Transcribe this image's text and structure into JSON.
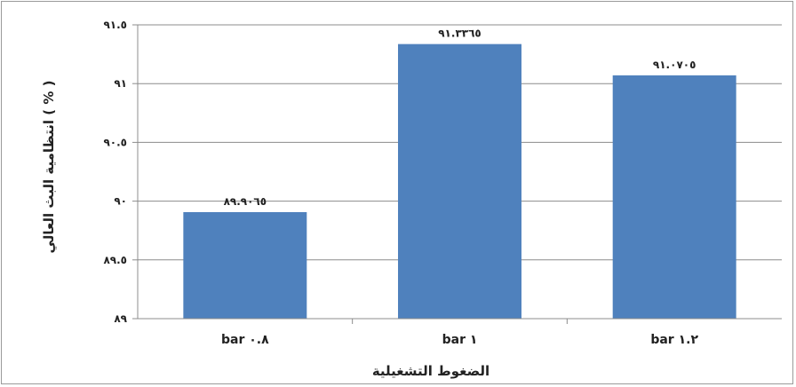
{
  "chart_data": {
    "type": "bar",
    "title": "",
    "xlabel": "الضغوط التشغيلية",
    "ylabel": "انتظامية البث العالي ( % )",
    "categories": [
      "bar ٠.٨",
      "bar ١",
      "bar ١.٢"
    ],
    "values": [
      89.9065,
      91.3365,
      91.0705
    ],
    "data_labels": [
      "٨٩.٩٠٦٥",
      "٩١.٣٣٦٥",
      "٩١.٠٧٠٥"
    ],
    "ylim": [
      89,
      91.5
    ],
    "yticks": [
      89,
      89.5,
      90,
      90.5,
      91,
      91.5
    ],
    "ytick_labels": [
      "٨٩",
      "٨٩.٥",
      "٩٠",
      "٩٠.٥",
      "٩١",
      "٩١.٥"
    ],
    "grid": true,
    "legend": "none",
    "colors": {
      "bar": "#4f81bd",
      "grid": "#8c8c8c",
      "axis": "#8c8c8c",
      "frame": "#9a9a9a"
    }
  }
}
